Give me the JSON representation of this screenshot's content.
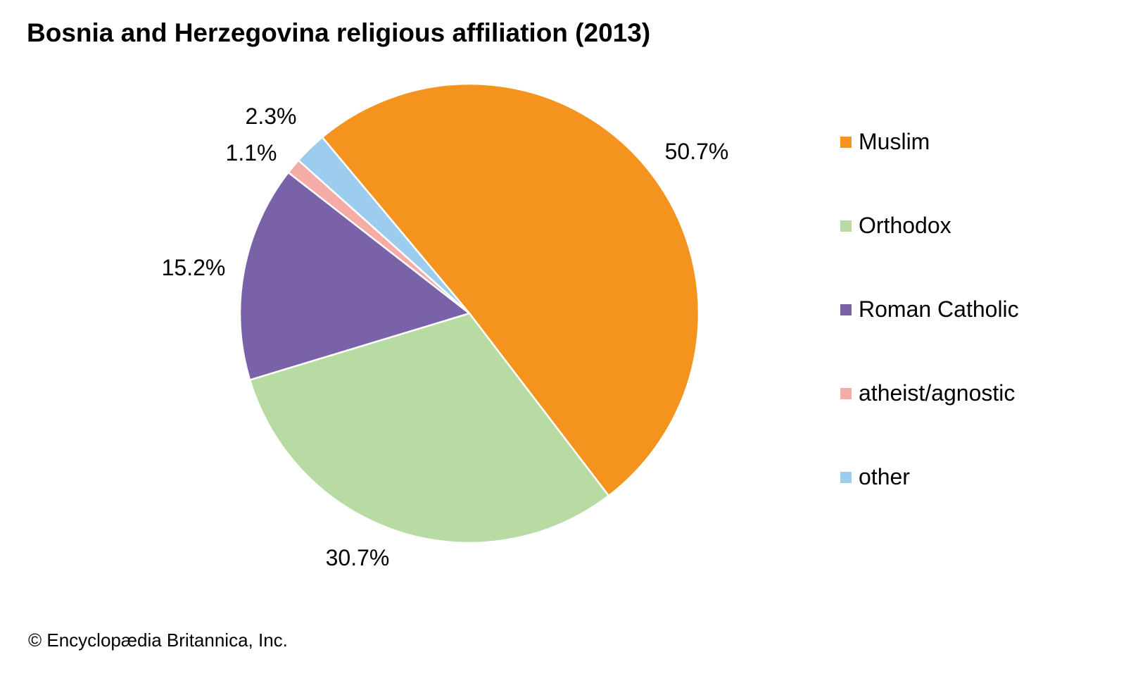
{
  "chart_data": {
    "type": "pie",
    "title": "Bosnia and Herzegovina religious affiliation (2013)",
    "categories": [
      "Muslim",
      "Orthodox",
      "Roman Catholic",
      "atheist/agnostic",
      "other"
    ],
    "values": [
      50.7,
      30.7,
      15.2,
      1.1,
      2.3
    ],
    "data_labels": [
      "50.7%",
      "30.7%",
      "15.2%",
      "1.1%",
      "2.3%"
    ],
    "colors": [
      "#F5931F",
      "#B7DBA3",
      "#7A62A8",
      "#F5ABA6",
      "#9DCDEE"
    ],
    "legend_position": "right",
    "direction": "clockwise"
  },
  "credit": "© Encyclopædia Britannica, Inc."
}
